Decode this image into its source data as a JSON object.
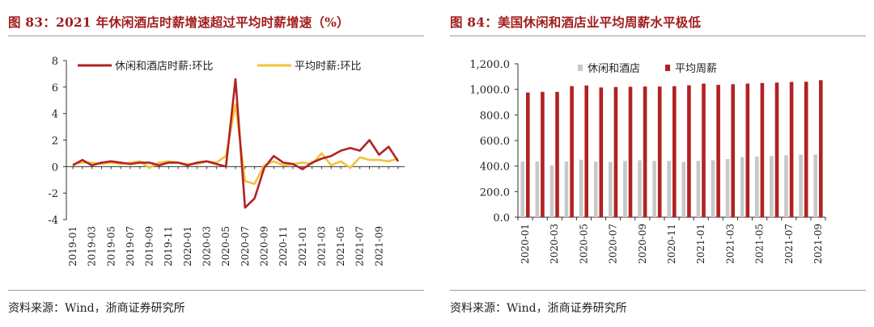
{
  "left": {
    "title": "图 83：2021 年休闲酒店时薪增速超过平均时薪增速（%）",
    "source": "资料来源：Wind，浙商证券研究所"
  },
  "right": {
    "title": "图 84：美国休闲和酒店业平均周薪水平极低",
    "source": "资料来源：Wind，浙商证券研究所"
  },
  "colors": {
    "red": "#b22222",
    "yellow": "#f2c23a",
    "gray": "#c8c8c8",
    "title_red": "#a11d1d"
  },
  "chart_data": [
    {
      "type": "line",
      "title": "2021 年休闲酒店时薪增速超过平均时薪增速（%）",
      "ylim": [
        -4,
        8
      ],
      "yticks": [
        "-4",
        "-2",
        "0",
        "2",
        "4",
        "6",
        "8"
      ],
      "yticks_values": [
        -4,
        -2,
        0,
        2,
        4,
        6,
        8
      ],
      "x_tick_labels": [
        "2019-01",
        "2019-03",
        "2019-05",
        "2019-07",
        "2019-09",
        "2019-11",
        "2020-01",
        "2020-03",
        "2020-05",
        "2020-07",
        "2020-09",
        "2020-11",
        "2021-01",
        "2021-03",
        "2021-05",
        "2021-07",
        "2021-09"
      ],
      "legend": [
        "休闲和酒店时薪:环比",
        "平均时薪:环比"
      ],
      "series": [
        {
          "name": "休闲和酒店时薪:环比",
          "color": "#b22222",
          "values": [
            0.1,
            0.5,
            0.1,
            0.3,
            0.4,
            0.3,
            0.2,
            0.3,
            0.3,
            0.1,
            0.3,
            0.3,
            0.1,
            0.3,
            0.4,
            0.2,
            0.0,
            6.6,
            -3.1,
            -2.4,
            -0.1,
            0.8,
            0.3,
            0.2,
            -0.2,
            0.3,
            0.6,
            0.8,
            1.2,
            1.4,
            1.2,
            2.0,
            0.9,
            1.5,
            0.4
          ]
        },
        {
          "name": "平均时薪:环比",
          "color": "#f2c23a",
          "values": [
            0.2,
            0.3,
            0.3,
            0.2,
            0.3,
            0.2,
            0.3,
            0.4,
            -0.1,
            0.3,
            0.4,
            0.3,
            0.2,
            0.2,
            0.4,
            0.3,
            0.8,
            4.7,
            -1.1,
            -1.3,
            0.1,
            0.4,
            0.1,
            0.2,
            0.3,
            0.2,
            1.0,
            0.1,
            0.4,
            -0.1,
            0.7,
            0.5,
            0.5,
            0.4,
            0.6
          ]
        }
      ]
    },
    {
      "type": "bar",
      "title": "美国休闲和酒店业平均周薪水平极低",
      "ylim": [
        0,
        1200
      ],
      "yticks": [
        "0.0",
        "200.0",
        "400.0",
        "600.0",
        "800.0",
        "1,000.0",
        "1,200.0"
      ],
      "yticks_values": [
        0,
        200,
        400,
        600,
        800,
        1000,
        1200
      ],
      "categories": [
        "2020-01",
        "2020-02",
        "2020-03",
        "2020-04",
        "2020-05",
        "2020-06",
        "2020-07",
        "2020-08",
        "2020-09",
        "2020-10",
        "2020-11",
        "2020-12",
        "2021-01",
        "2021-02",
        "2021-03",
        "2021-04",
        "2021-05",
        "2021-06",
        "2021-07",
        "2021-08",
        "2021-09"
      ],
      "x_tick_labels": [
        "2020-01",
        "2020-03",
        "2020-05",
        "2020-07",
        "2020-09",
        "2020-11",
        "2021-01",
        "2021-03",
        "2021-05",
        "2021-07",
        "2021-09"
      ],
      "legend": [
        "休闲和酒店",
        "平均周薪"
      ],
      "series": [
        {
          "name": "休闲和酒店",
          "color": "#c8c8c8",
          "values": [
            435,
            435,
            405,
            435,
            450,
            435,
            432,
            440,
            445,
            440,
            440,
            432,
            440,
            445,
            455,
            470,
            475,
            480,
            485,
            490,
            490
          ]
        },
        {
          "name": "平均周薪",
          "color": "#b22222",
          "values": [
            975,
            980,
            980,
            1025,
            1030,
            1015,
            1018,
            1020,
            1022,
            1022,
            1025,
            1032,
            1045,
            1035,
            1040,
            1045,
            1050,
            1053,
            1058,
            1060,
            1072
          ]
        }
      ]
    }
  ]
}
